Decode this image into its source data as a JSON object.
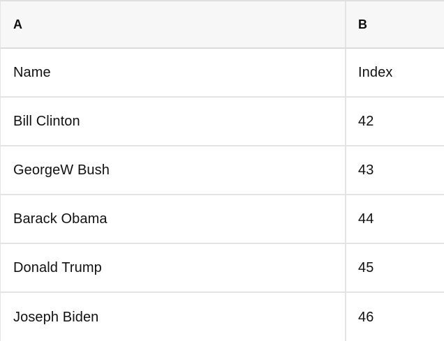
{
  "table": {
    "columns": {
      "a": "A",
      "b": "B"
    },
    "rows": [
      {
        "a": "Name",
        "b": "Index"
      },
      {
        "a": "Bill Clinton",
        "b": "42"
      },
      {
        "a": "GeorgeW Bush",
        "b": "43"
      },
      {
        "a": "Barack Obama",
        "b": "44"
      },
      {
        "a": "Donald Trump",
        "b": "45"
      },
      {
        "a": "Joseph Biden",
        "b": "46"
      }
    ]
  },
  "colors": {
    "header_bg": "#f7f7f7",
    "border": "#e4e4e4",
    "header_border": "#dcdcdc",
    "text": "#111111"
  }
}
